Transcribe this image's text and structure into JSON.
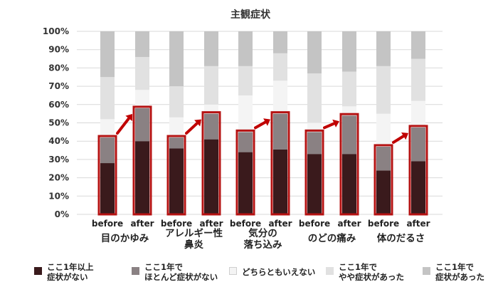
{
  "colors": {
    "series": [
      "#3a1a1c",
      "#8a8183",
      "#f4f4f4",
      "#e1e1e1",
      "#c4c4c4"
    ],
    "highlight": "#b51212",
    "arrow": "#c00000",
    "grid": "#d9d9d9"
  },
  "chart_data": {
    "type": "bar",
    "stacked": true,
    "title": "主観症状",
    "xlabel": "",
    "ylabel": "",
    "ylim": [
      0,
      100
    ],
    "y_ticks": [
      "0%",
      "10%",
      "20%",
      "30%",
      "40%",
      "50%",
      "60%",
      "70%",
      "80%",
      "90%",
      "100%"
    ],
    "grid": true,
    "legend_position": "bottom",
    "categories": [
      "before",
      "after",
      "before",
      "after",
      "before",
      "after",
      "before",
      "after",
      "before",
      "after"
    ],
    "groups": [
      {
        "lines": [
          "目のかゆみ"
        ]
      },
      {
        "lines": [
          "アレルギー性",
          "鼻炎"
        ]
      },
      {
        "lines": [
          "気分の",
          "落ち込み"
        ]
      },
      {
        "lines": [
          "のどの痛み"
        ]
      },
      {
        "lines": [
          "体のだるさ"
        ]
      }
    ],
    "series": [
      {
        "name": "ここ1年以上症状がない",
        "legend_lines": [
          "ここ1年以上",
          "症状がない"
        ],
        "values": [
          28,
          40,
          36,
          41,
          34,
          35.5,
          33,
          33,
          24,
          29
        ]
      },
      {
        "name": "ここ1年でほとんど症状がない",
        "legend_lines": [
          "ここ1年で",
          "ほとんど症状がない"
        ],
        "values": [
          14,
          18,
          6,
          14,
          11,
          19.5,
          12,
          21,
          13,
          18.5
        ]
      },
      {
        "name": "どちらともいえない",
        "legend_lines": [
          "どちらともいえない"
        ],
        "values": [
          10,
          10,
          11,
          5,
          20,
          18,
          5,
          5,
          18,
          14.5
        ]
      },
      {
        "name": "ここ1年でやや症状があった",
        "legend_lines": [
          "ここ1年で",
          "やや症状があった"
        ],
        "values": [
          23,
          18,
          17,
          21,
          16,
          15,
          27,
          19,
          26,
          23
        ]
      },
      {
        "name": "ここ1年で症状があった",
        "legend_lines": [
          "ここ1年で",
          "症状があった"
        ],
        "values": [
          25,
          14,
          30,
          19,
          19,
          12,
          23,
          22,
          19,
          15
        ]
      }
    ]
  }
}
